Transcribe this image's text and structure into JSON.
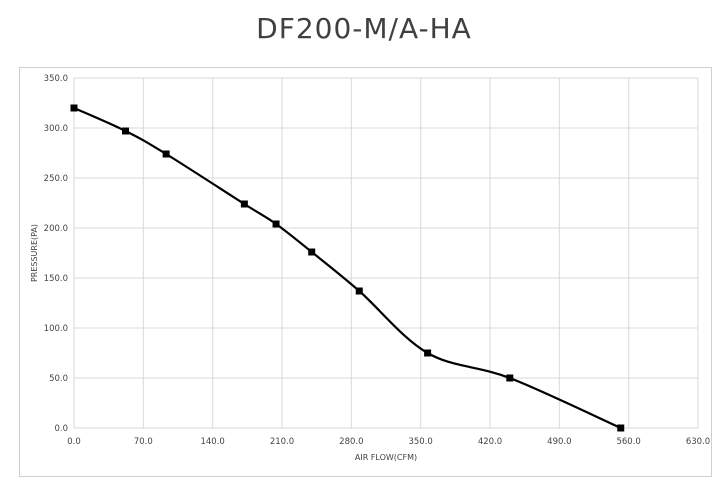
{
  "chart_data": {
    "type": "line",
    "title": "DF200-M/A-HA",
    "xlabel": "AIR FLOW(CFM)",
    "ylabel": "PRESSURE(PA)",
    "xlim": [
      0,
      630
    ],
    "ylim": [
      0,
      350
    ],
    "x_ticks": [
      "0.0",
      "70.0",
      "140.0",
      "210.0",
      "280.0",
      "350.0",
      "420.0",
      "490.0",
      "560.0",
      "630.0"
    ],
    "y_ticks": [
      "0.0",
      "50.0",
      "100.0",
      "150.0",
      "200.0",
      "250.0",
      "300.0",
      "350.0"
    ],
    "grid": true,
    "series": [
      {
        "color": "#000000",
        "marker": "square",
        "x": [
          0,
          52,
          93,
          172,
          204,
          240,
          288,
          357,
          440,
          552
        ],
        "y": [
          320,
          297,
          274,
          224,
          204,
          176,
          137,
          75,
          50,
          0
        ]
      }
    ]
  }
}
